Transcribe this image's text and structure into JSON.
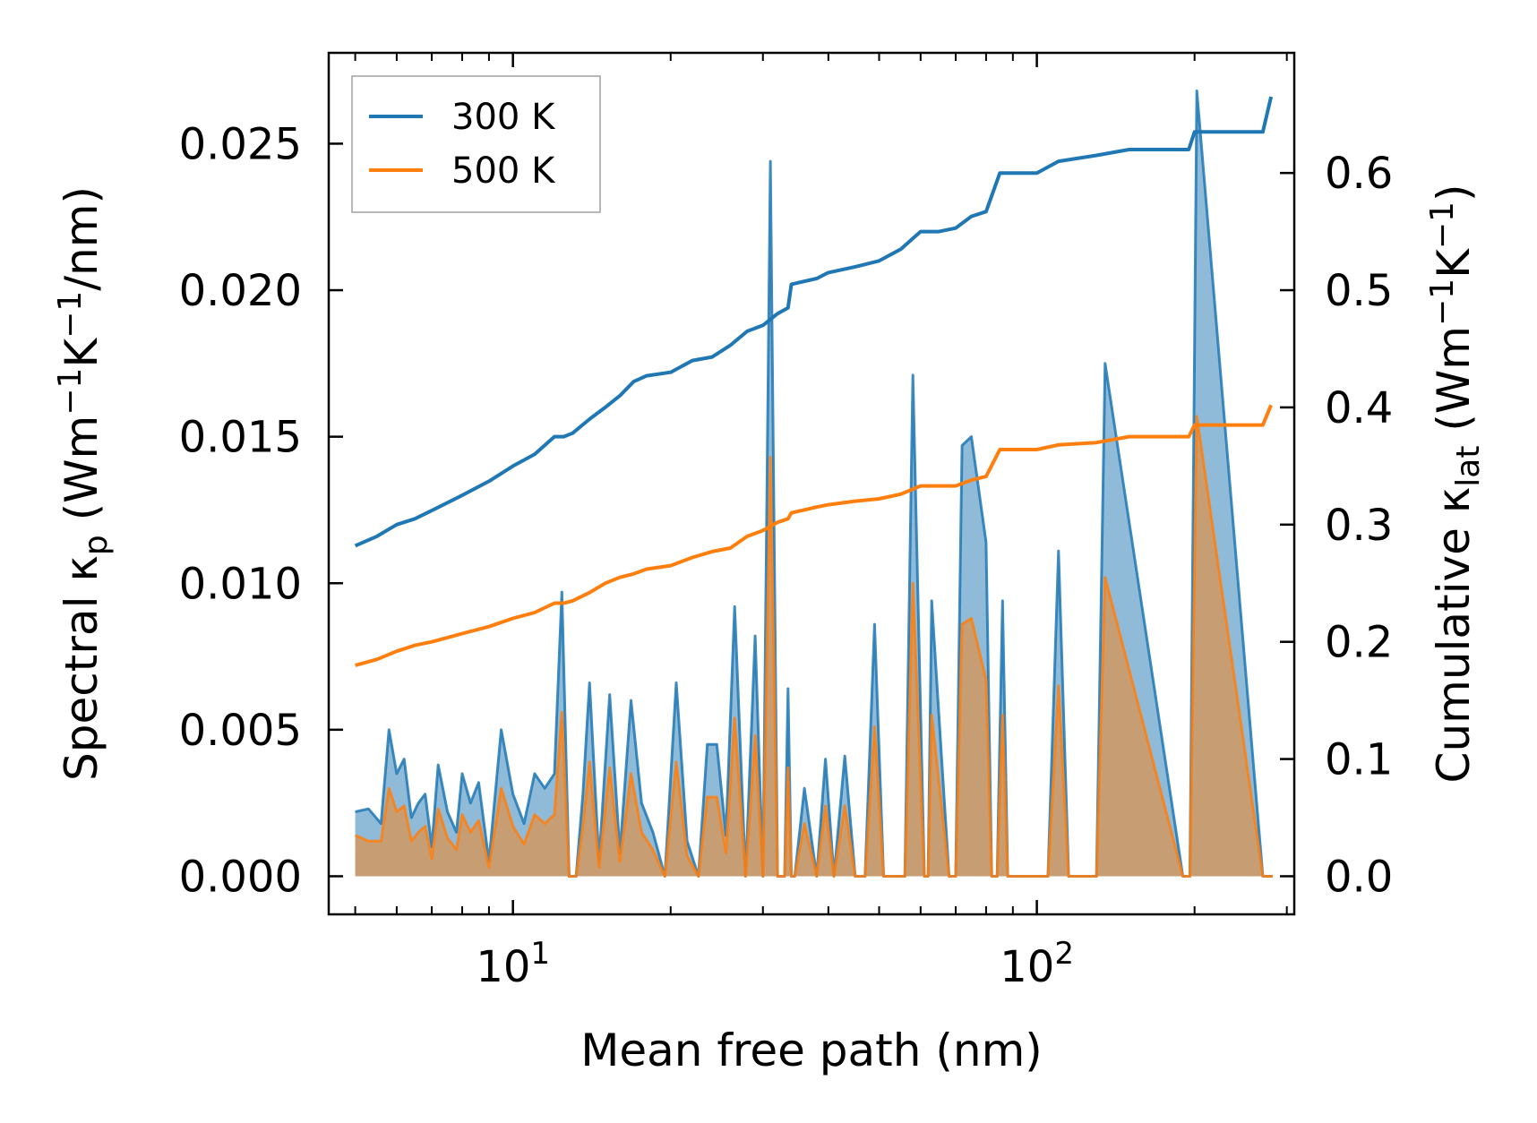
{
  "chart_data": {
    "type": "line",
    "xlabel": "Mean free path (nm)",
    "ylabel_left": {
      "base": "Spectral κ",
      "sub": "p",
      "units_open": " (Wm",
      "exp1": "−1",
      "mid": "K",
      "exp2": "−1",
      "tail": "/nm)"
    },
    "ylabel_right": {
      "base": "Cumulative κ",
      "sub": "lat",
      "units_open": " (Wm",
      "exp1": "−1",
      "mid": "K",
      "exp2": "−1",
      "tail": ")"
    },
    "x_scale": "log",
    "xlim": [
      4.45,
      310
    ],
    "ylim_left": [
      -0.0013,
      0.0281
    ],
    "ylim_right": [
      -0.0325,
      0.7025
    ],
    "x_ticks": [
      {
        "value": 10,
        "base": "10",
        "exp": "1"
      },
      {
        "value": 100,
        "base": "10",
        "exp": "2"
      }
    ],
    "y_ticks_left": [
      "0.000",
      "0.005",
      "0.010",
      "0.015",
      "0.020",
      "0.025"
    ],
    "y_ticks_right": [
      "0.0",
      "0.1",
      "0.2",
      "0.3",
      "0.4",
      "0.5",
      "0.6"
    ],
    "legend": {
      "placement": "top-left",
      "entries": [
        "300 K",
        "500 K"
      ]
    },
    "colors": {
      "300 K": "#1f77b4",
      "500 K": "#ff7f0e"
    },
    "series": [
      {
        "name": "300 K",
        "axis": "right",
        "kind": "cumulative",
        "x": [
          5,
          5.5,
          6,
          6.5,
          7,
          8,
          9,
          10,
          11,
          12,
          12.5,
          13,
          14,
          15,
          16,
          17,
          18,
          20,
          22,
          24,
          26,
          28,
          30,
          32,
          33.5,
          34,
          38,
          40,
          45,
          50,
          55,
          60,
          65,
          70,
          75,
          80,
          85,
          100,
          110,
          130,
          150,
          195,
          200,
          270,
          280
        ],
        "y": [
          0.282,
          0.29,
          0.3,
          0.305,
          0.312,
          0.325,
          0.337,
          0.35,
          0.36,
          0.375,
          0.375,
          0.378,
          0.39,
          0.4,
          0.41,
          0.422,
          0.427,
          0.43,
          0.44,
          0.443,
          0.453,
          0.465,
          0.47,
          0.48,
          0.485,
          0.505,
          0.51,
          0.515,
          0.52,
          0.525,
          0.535,
          0.55,
          0.55,
          0.553,
          0.563,
          0.567,
          0.6,
          0.6,
          0.61,
          0.615,
          0.62,
          0.62,
          0.635,
          0.635,
          0.665
        ]
      },
      {
        "name": "500 K",
        "axis": "right",
        "kind": "cumulative",
        "x": [
          5,
          5.5,
          6,
          6.5,
          7,
          8,
          9,
          10,
          11,
          12,
          12.5,
          13,
          14,
          15,
          16,
          17,
          18,
          20,
          22,
          24,
          26,
          28,
          30,
          32,
          33.5,
          34,
          38,
          40,
          45,
          50,
          55,
          60,
          65,
          70,
          75,
          80,
          85,
          100,
          110,
          130,
          150,
          195,
          200,
          270,
          280
        ],
        "y": [
          0.18,
          0.185,
          0.192,
          0.197,
          0.2,
          0.207,
          0.213,
          0.22,
          0.225,
          0.233,
          0.233,
          0.235,
          0.242,
          0.25,
          0.255,
          0.258,
          0.262,
          0.265,
          0.272,
          0.277,
          0.28,
          0.29,
          0.295,
          0.302,
          0.305,
          0.31,
          0.315,
          0.317,
          0.32,
          0.322,
          0.326,
          0.333,
          0.333,
          0.333,
          0.338,
          0.341,
          0.364,
          0.364,
          0.368,
          0.37,
          0.375,
          0.375,
          0.385,
          0.385,
          0.402
        ]
      },
      {
        "name": "300 K",
        "axis": "left",
        "kind": "spectral",
        "x": [
          5,
          5.3,
          5.6,
          5.8,
          6.0,
          6.2,
          6.4,
          6.6,
          6.8,
          7.0,
          7.2,
          7.5,
          7.8,
          8.0,
          8.3,
          8.6,
          9.0,
          9.5,
          10.0,
          10.5,
          11.0,
          11.5,
          12.0,
          12.4,
          12.8,
          13.2,
          13.6,
          14.0,
          14.6,
          15.3,
          16.0,
          16.8,
          17.6,
          18.5,
          19.5,
          20.5,
          21.5,
          22.6,
          23.5,
          24.5,
          25.5,
          26.5,
          27.8,
          29.0,
          30.0,
          31.0,
          32.0,
          33.0,
          33.5,
          34.0,
          34.5,
          36,
          38,
          39.5,
          41,
          43,
          45,
          47,
          49,
          51,
          53,
          56,
          58,
          61,
          62,
          63,
          68,
          70,
          72,
          75,
          80,
          82,
          84,
          86,
          88,
          105,
          110,
          115,
          125,
          130,
          135,
          190,
          196,
          202,
          270,
          276,
          282
        ],
        "y": [
          0.0022,
          0.0023,
          0.0018,
          0.005,
          0.0035,
          0.004,
          0.002,
          0.0025,
          0.0028,
          0.001,
          0.0038,
          0.0022,
          0.0015,
          0.0035,
          0.0025,
          0.0032,
          0.0005,
          0.005,
          0.0028,
          0.0018,
          0.0035,
          0.003,
          0.0035,
          0.0097,
          0.0,
          0.0,
          0.0028,
          0.0066,
          0.0005,
          0.0062,
          0.0008,
          0.006,
          0.0025,
          0.0015,
          0.0,
          0.0066,
          0.0012,
          0.0,
          0.0045,
          0.0045,
          0.0014,
          0.0092,
          0.0,
          0.0082,
          0.0,
          0.0244,
          0.0,
          0.0,
          0.0064,
          0.0,
          0.0,
          0.003,
          0.0,
          0.004,
          0.0,
          0.0041,
          0.0,
          0.0,
          0.0086,
          0.0,
          0.0,
          0.0,
          0.0171,
          0.0,
          0.0,
          0.0094,
          0.0,
          0.0,
          0.0147,
          0.015,
          0.0114,
          0.0,
          0.0,
          0.0094,
          0.0,
          0.0,
          0.0111,
          0.0,
          0.0,
          0.0,
          0.0175,
          0.0,
          0.0,
          0.0268,
          0.0,
          0.0,
          0.0
        ]
      },
      {
        "name": "500 K",
        "axis": "left",
        "kind": "spectral",
        "x": [
          5,
          5.3,
          5.6,
          5.8,
          6.0,
          6.2,
          6.4,
          6.6,
          6.8,
          7.0,
          7.2,
          7.5,
          7.8,
          8.0,
          8.3,
          8.6,
          9.0,
          9.5,
          10.0,
          10.5,
          11.0,
          11.5,
          12.0,
          12.4,
          12.8,
          13.2,
          13.6,
          14.0,
          14.6,
          15.3,
          16.0,
          16.8,
          17.6,
          18.5,
          19.5,
          20.5,
          21.5,
          22.6,
          23.5,
          24.5,
          25.5,
          26.5,
          27.8,
          29.0,
          30.0,
          31.0,
          32.0,
          33.0,
          33.5,
          34.0,
          34.5,
          36,
          38,
          39.5,
          41,
          43,
          45,
          47,
          49,
          51,
          53,
          56,
          58,
          61,
          62,
          63,
          68,
          70,
          72,
          75,
          80,
          82,
          84,
          86,
          88,
          105,
          110,
          115,
          125,
          130,
          135,
          190,
          196,
          202,
          270,
          276,
          282
        ],
        "y": [
          0.0014,
          0.0012,
          0.0012,
          0.003,
          0.0022,
          0.0024,
          0.0012,
          0.0015,
          0.0017,
          0.0006,
          0.0023,
          0.0013,
          0.0009,
          0.0021,
          0.0015,
          0.0019,
          0.0003,
          0.003,
          0.0017,
          0.0011,
          0.0021,
          0.0018,
          0.0021,
          0.0056,
          0.0,
          0.0,
          0.0017,
          0.0039,
          0.0003,
          0.0037,
          0.0005,
          0.0035,
          0.0015,
          0.0009,
          0.0,
          0.0039,
          0.0007,
          0.0,
          0.0027,
          0.0027,
          0.0008,
          0.0054,
          0.0,
          0.0048,
          0.0,
          0.0143,
          0.0,
          0.0,
          0.0037,
          0.0,
          0.0,
          0.0018,
          0.0,
          0.0024,
          0.0,
          0.0024,
          0.0,
          0.0,
          0.0051,
          0.0,
          0.0,
          0.0,
          0.01,
          0.0,
          0.0,
          0.0055,
          0.0,
          0.0,
          0.0086,
          0.0088,
          0.0067,
          0.0,
          0.0,
          0.0055,
          0.0,
          0.0,
          0.0065,
          0.0,
          0.0,
          0.0,
          0.0102,
          0.0,
          0.0,
          0.0157,
          0.0,
          0.0,
          0.0
        ]
      }
    ]
  }
}
